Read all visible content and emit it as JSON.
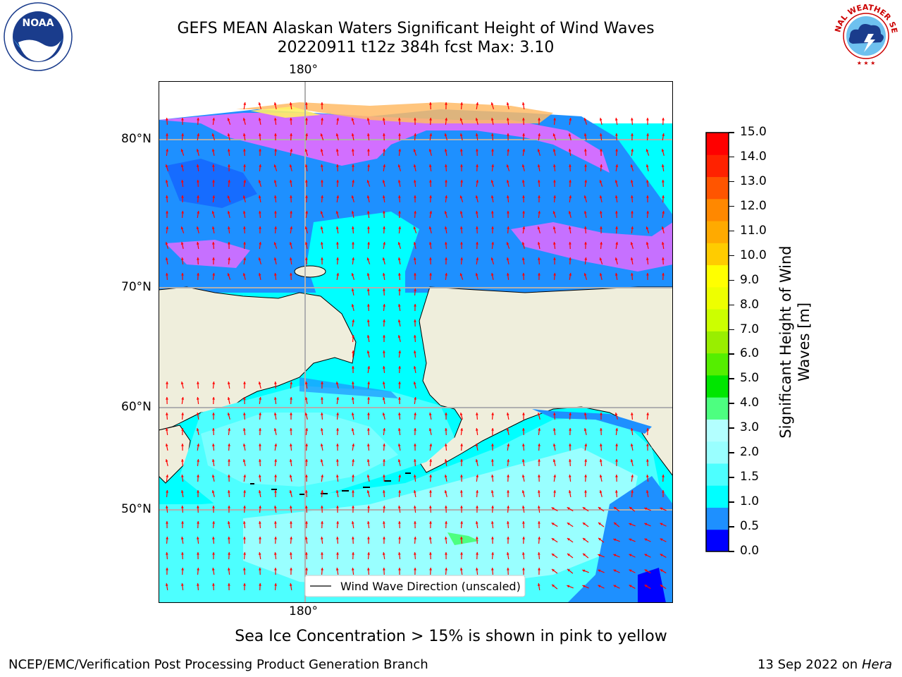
{
  "header": {
    "title_line1": "GEFS MEAN Alaskan Waters Significant Height of Wind Waves",
    "title_line2": "20220911 t12z 384h fcst   Max: 3.10"
  },
  "logos": {
    "left": "NOAA",
    "right": "NATIONAL WEATHER SERVICE"
  },
  "map": {
    "top_lon_label": "180°",
    "bottom_lon_label": "180°",
    "lat_labels": [
      "80°N",
      "70°N",
      "60°N",
      "50°N"
    ],
    "legend_label": "Wind Wave Direction (unscaled)",
    "colors": {
      "land": "#efeedc",
      "blue_dark": "#0000ff",
      "blue_mid": "#1e90ff",
      "cyan": "#00ffff",
      "cyan_light": "#4dffff",
      "cyan_pale": "#b3ffff",
      "arrow": "#ff0000",
      "ice_pink": "#ff66ff",
      "ice_orange": "#ffbb66",
      "ice_yellow": "#ffee66"
    }
  },
  "colorbar": {
    "label_line1": "Significant Height of Wind",
    "label_line2": "Waves [m]",
    "ticks": [
      "0.0",
      "0.5",
      "1.0",
      "1.5",
      "2.0",
      "3.0",
      "4.0",
      "5.0",
      "6.0",
      "7.0",
      "8.0",
      "9.0",
      "10.0",
      "11.0",
      "12.0",
      "13.0",
      "14.0",
      "15.0"
    ],
    "colors": [
      "#0000ff",
      "#1e90ff",
      "#00ffff",
      "#4dffff",
      "#99ffff",
      "#b3ffff",
      "#4dff80",
      "#00e600",
      "#55ee00",
      "#99ee00",
      "#ccff00",
      "#eeff00",
      "#ffff00",
      "#ffcc00",
      "#ffaa00",
      "#ff8800",
      "#ff5500",
      "#ff2200",
      "#ff0000"
    ]
  },
  "footer": {
    "note": "Sea Ice Concentration > 15% is shown in pink to yellow",
    "branch": "NCEP/EMC/Verification Post Processing Product Generation Branch",
    "date": "13 Sep 2022 on",
    "machine": "Hera"
  }
}
